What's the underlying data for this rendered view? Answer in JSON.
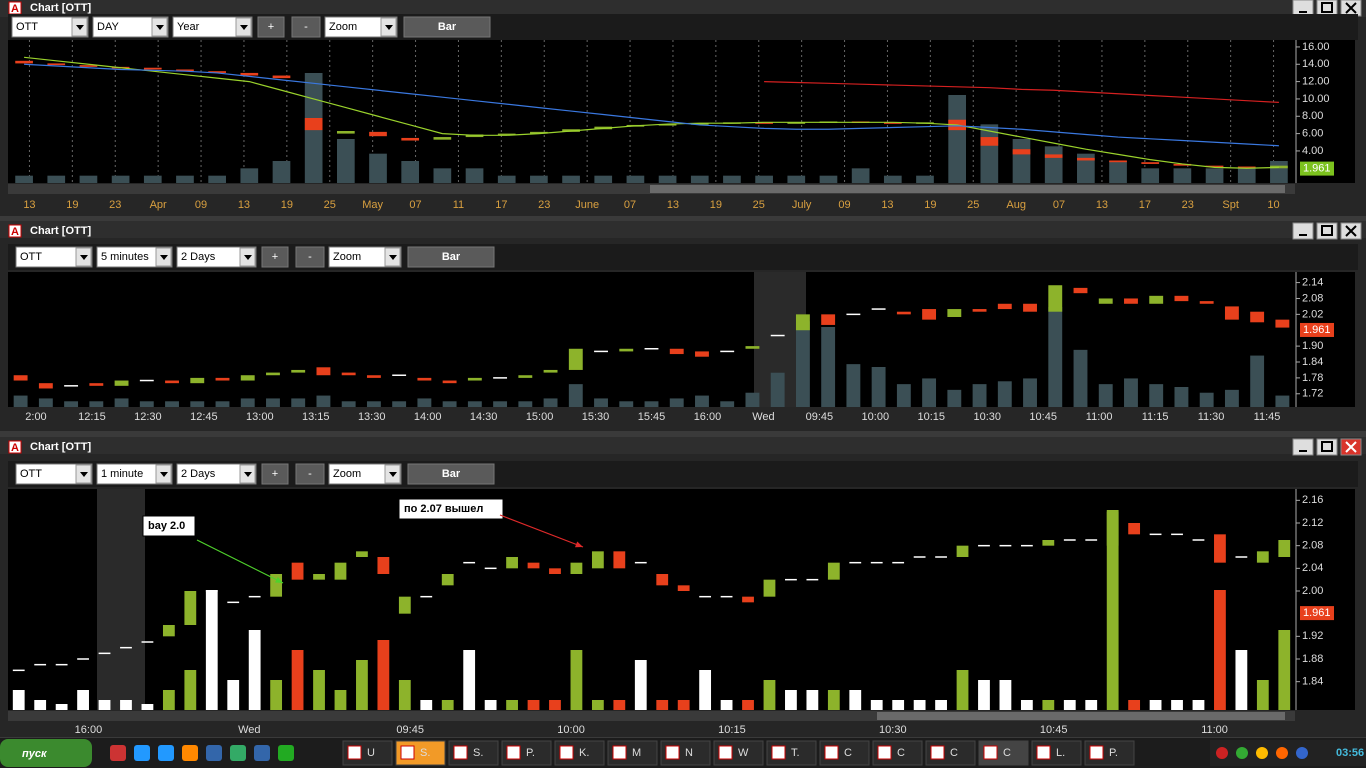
{
  "windows": [
    {
      "title": "Chart [OTT]",
      "symbol": "OTT",
      "interval": "DAY",
      "range": "Year",
      "plus": "+",
      "minus": "-",
      "zoom": "Zoom",
      "style": "Bar",
      "chart": {
        "type": "candlestick",
        "ylim": [
          0.3,
          16.8
        ],
        "yticks": [
          {
            "value": 16,
            "label": "16.00"
          },
          {
            "value": 14,
            "label": "14.00"
          },
          {
            "value": 12,
            "label": "12.00"
          },
          {
            "value": 10,
            "label": "10.00"
          },
          {
            "value": 8,
            "label": "8.00"
          },
          {
            "value": 6,
            "label": "6.00"
          },
          {
            "value": 4,
            "label": "4.00"
          }
        ],
        "xticks": [
          "13",
          "19",
          "23",
          "Apr",
          "09",
          "13",
          "19",
          "25",
          "May",
          "07",
          "11",
          "17",
          "23",
          "June",
          "07",
          "13",
          "19",
          "25",
          "July",
          "09",
          "13",
          "19",
          "25",
          "Aug",
          "07",
          "13",
          "17",
          "23",
          "Spt",
          "10"
        ],
        "grid": true,
        "last_price": 1.961,
        "last_color": "#7cc21e",
        "up_color": "#8db32b",
        "down_color": "#e8401c",
        "flat_color": "#ffffff",
        "volume_color": "#3b4f55",
        "candles": [
          [
            14.4,
            14.1
          ],
          [
            14.1,
            13.9
          ],
          [
            13.9,
            13.7
          ],
          [
            13.7,
            13.6
          ],
          [
            13.6,
            13.4
          ],
          [
            13.4,
            13.2
          ],
          [
            13.2,
            13.0
          ],
          [
            13.0,
            12.7
          ],
          [
            12.7,
            12.4
          ],
          [
            7.8,
            6.4
          ],
          [
            6.0,
            6.3
          ],
          [
            6.2,
            5.7
          ],
          [
            5.5,
            5.2
          ],
          [
            5.3,
            5.6
          ],
          [
            5.6,
            5.9
          ],
          [
            5.9,
            6.0
          ],
          [
            6.0,
            6.2
          ],
          [
            6.2,
            6.5
          ],
          [
            6.5,
            6.8
          ],
          [
            6.8,
            7.0
          ],
          [
            7.0,
            7.1
          ],
          [
            7.1,
            7.2
          ],
          [
            7.2,
            7.3
          ],
          [
            7.3,
            7.2
          ],
          [
            7.2,
            7.3
          ],
          [
            7.3,
            7.4
          ],
          [
            7.4,
            7.3
          ],
          [
            7.3,
            7.2
          ],
          [
            7.2,
            7.3
          ],
          [
            7.6,
            6.4
          ],
          [
            5.6,
            4.6
          ],
          [
            4.2,
            3.6
          ],
          [
            3.6,
            3.2
          ],
          [
            3.2,
            2.9
          ],
          [
            2.9,
            2.7
          ],
          [
            2.7,
            2.5
          ],
          [
            2.5,
            2.3
          ],
          [
            2.3,
            2.2
          ],
          [
            2.2,
            2.1
          ],
          [
            2.0,
            2.3
          ]
        ],
        "volume": [
          1,
          1,
          1,
          1,
          1,
          1,
          1,
          2,
          3,
          15,
          6,
          4,
          3,
          2,
          2,
          1,
          1,
          1,
          1,
          1,
          1,
          1,
          1,
          1,
          1,
          1,
          2,
          1,
          1,
          12,
          8,
          6,
          5,
          4,
          3,
          2,
          2,
          2,
          2,
          3
        ],
        "lines": [
          {
            "color": "#9ad22c",
            "values": [
              14.8,
              14.4,
              14.0,
              13.6,
              13.2,
              12.8,
              12.4,
              12.0,
              11.0,
              10.0,
              9.0,
              8.0,
              7.0,
              6.0,
              5.8,
              5.8,
              6.0,
              6.3,
              6.6,
              6.9,
              7.1,
              7.2,
              7.2,
              7.3,
              7.3,
              7.3,
              7.3,
              7.3,
              7.2,
              7.0,
              6.3,
              5.6,
              4.9,
              4.2,
              3.6,
              3.0,
              2.5,
              2.1,
              2.0,
              2.1
            ]
          },
          {
            "color": "#3a78e0",
            "values": [
              14.0,
              13.8,
              13.6,
              13.4,
              13.3,
              13.2,
              13.0,
              12.6,
              12.2,
              11.8,
              11.4,
              11.0,
              10.6,
              10.2,
              9.8,
              9.4,
              9.0,
              8.6,
              8.2,
              7.8,
              7.4,
              7.0,
              6.8,
              6.6,
              6.5,
              6.5,
              6.6,
              6.7,
              6.8,
              6.9,
              6.7,
              6.5,
              6.2,
              5.9,
              5.6,
              5.4,
              5.2,
              5.0,
              4.8,
              4.6
            ]
          },
          {
            "color": "#d42020",
            "values": [
              null,
              null,
              null,
              null,
              null,
              null,
              null,
              null,
              null,
              null,
              null,
              null,
              null,
              null,
              null,
              null,
              null,
              null,
              null,
              null,
              null,
              null,
              null,
              12.0,
              11.9,
              11.8,
              11.7,
              11.6,
              11.5,
              11.4,
              11.3,
              11.1,
              11.0,
              10.8,
              10.6,
              10.4,
              10.2,
              10.0,
              9.8,
              9.6
            ]
          }
        ]
      }
    },
    {
      "title": "Chart [OTT]",
      "symbol": "OTT",
      "interval": "5 minutes",
      "range": "2 Days",
      "plus": "+",
      "minus": "-",
      "zoom": "Zoom",
      "style": "Bar",
      "chart": {
        "type": "candlestick",
        "ylim": [
          1.67,
          2.18
        ],
        "yticks": [
          2.14,
          2.08,
          2.02,
          {
            "value": 1.9,
            "label": "1.90"
          },
          1.84,
          1.78,
          1.72
        ],
        "xticks": [
          "2:00",
          "12:15",
          "12:30",
          "12:45",
          "13:00",
          "13:15",
          "13:30",
          "14:00",
          "14:30",
          "15:00",
          "15:30",
          "15:45",
          "16:00",
          "Wed",
          "09:45",
          "10:00",
          "10:15",
          "10:30",
          "10:45",
          "11:00",
          "11:15",
          "11:30",
          "11:45"
        ],
        "grid": false,
        "last_price": 1.961,
        "last_color": "#e8401c",
        "up_color": "#8db32b",
        "down_color": "#e8401c",
        "flat_color": "#ffffff",
        "volume_color": "#3b4f55",
        "candles": [
          [
            1.79,
            1.77
          ],
          [
            1.76,
            1.74
          ],
          [
            1.75,
            1.75
          ],
          [
            1.76,
            1.75
          ],
          [
            1.75,
            1.77
          ],
          [
            1.77,
            1.77
          ],
          [
            1.77,
            1.76
          ],
          [
            1.76,
            1.78
          ],
          [
            1.78,
            1.77
          ],
          [
            1.77,
            1.79
          ],
          [
            1.79,
            1.8
          ],
          [
            1.8,
            1.81
          ],
          [
            1.82,
            1.79
          ],
          [
            1.8,
            1.79
          ],
          [
            1.79,
            1.78
          ],
          [
            1.79,
            1.79
          ],
          [
            1.78,
            1.77
          ],
          [
            1.77,
            1.76
          ],
          [
            1.77,
            1.78
          ],
          [
            1.78,
            1.78
          ],
          [
            1.78,
            1.79
          ],
          [
            1.8,
            1.81
          ],
          [
            1.81,
            1.89
          ],
          [
            1.88,
            1.88
          ],
          [
            1.88,
            1.89
          ],
          [
            1.89,
            1.89
          ],
          [
            1.89,
            1.87
          ],
          [
            1.88,
            1.86
          ],
          [
            1.88,
            1.88
          ],
          [
            1.89,
            1.9
          ],
          [
            1.94,
            1.94
          ],
          [
            1.96,
            2.02
          ],
          [
            2.02,
            1.98
          ],
          [
            2.02,
            2.02
          ],
          [
            2.04,
            2.04
          ],
          [
            2.03,
            2.02
          ],
          [
            2.04,
            2.0
          ],
          [
            2.01,
            2.04
          ],
          [
            2.04,
            2.03
          ],
          [
            2.06,
            2.04
          ],
          [
            2.06,
            2.03
          ],
          [
            2.03,
            2.13
          ],
          [
            2.12,
            2.1
          ],
          [
            2.06,
            2.08
          ],
          [
            2.08,
            2.06
          ],
          [
            2.06,
            2.09
          ],
          [
            2.09,
            2.07
          ],
          [
            2.07,
            2.06
          ],
          [
            2.05,
            2.0
          ],
          [
            2.03,
            1.99
          ],
          [
            2.0,
            1.97
          ]
        ],
        "volume": [
          4,
          3,
          2,
          2,
          3,
          2,
          2,
          2,
          2,
          3,
          3,
          3,
          4,
          2,
          2,
          2,
          3,
          2,
          2,
          2,
          2,
          3,
          8,
          3,
          2,
          2,
          3,
          4,
          2,
          5,
          12,
          30,
          28,
          15,
          14,
          8,
          10,
          6,
          8,
          9,
          10,
          35,
          20,
          8,
          10,
          8,
          7,
          5,
          6,
          18,
          4
        ]
      },
      "annotations": []
    },
    {
      "title": "Chart [OTT]",
      "symbol": "OTT",
      "interval": "1 minute",
      "range": "2 Days",
      "plus": "+",
      "minus": "-",
      "zoom": "Zoom",
      "style": "Bar",
      "chart": {
        "type": "candlestick",
        "ylim": [
          1.79,
          2.18
        ],
        "yticks": [
          2.16,
          2.12,
          2.08,
          2.04,
          {
            "value": 2.0,
            "label": "2.00"
          },
          1.92,
          1.88,
          1.84
        ],
        "xticks": [
          "16:00",
          "Wed",
          "09:45",
          "10:00",
          "10:15",
          "10:30",
          "10:45",
          "11:00"
        ],
        "grid": false,
        "last_price": 1.961,
        "last_color": "#e8401c",
        "up_color": "#8db32b",
        "down_color": "#e8401c",
        "flat_color": "#ffffff",
        "candles": [
          [
            1.86,
            1.86
          ],
          [
            1.87,
            1.87
          ],
          [
            1.87,
            1.87
          ],
          [
            1.88,
            1.88
          ],
          [
            1.89,
            1.89
          ],
          [
            1.9,
            1.9
          ],
          [
            1.91,
            1.91
          ],
          [
            1.92,
            1.94
          ],
          [
            1.94,
            2.0
          ],
          [
            2.0,
            2.0
          ],
          [
            1.98,
            1.98
          ],
          [
            1.99,
            1.99
          ],
          [
            1.99,
            2.03
          ],
          [
            2.05,
            2.02
          ],
          [
            2.02,
            2.03
          ],
          [
            2.02,
            2.05
          ],
          [
            2.06,
            2.07
          ],
          [
            2.06,
            2.03
          ],
          [
            1.96,
            1.99
          ],
          [
            1.99,
            1.99
          ],
          [
            2.01,
            2.03
          ],
          [
            2.05,
            2.05
          ],
          [
            2.04,
            2.04
          ],
          [
            2.04,
            2.06
          ],
          [
            2.05,
            2.04
          ],
          [
            2.04,
            2.03
          ],
          [
            2.03,
            2.05
          ],
          [
            2.04,
            2.07
          ],
          [
            2.07,
            2.04
          ],
          [
            2.05,
            2.05
          ],
          [
            2.03,
            2.01
          ],
          [
            2.01,
            2.0
          ],
          [
            1.99,
            1.99
          ],
          [
            1.99,
            1.99
          ],
          [
            1.99,
            1.98
          ],
          [
            1.99,
            2.02
          ],
          [
            2.02,
            2.02
          ],
          [
            2.02,
            2.02
          ],
          [
            2.02,
            2.05
          ],
          [
            2.05,
            2.05
          ],
          [
            2.05,
            2.05
          ],
          [
            2.05,
            2.05
          ],
          [
            2.06,
            2.06
          ],
          [
            2.06,
            2.06
          ],
          [
            2.06,
            2.08
          ],
          [
            2.08,
            2.08
          ],
          [
            2.08,
            2.08
          ],
          [
            2.08,
            2.08
          ],
          [
            2.08,
            2.09
          ],
          [
            2.09,
            2.09
          ],
          [
            2.09,
            2.09
          ],
          [
            2.08,
            2.14
          ],
          [
            2.12,
            2.1
          ],
          [
            2.1,
            2.1
          ],
          [
            2.1,
            2.1
          ],
          [
            2.09,
            2.09
          ],
          [
            2.1,
            2.05
          ],
          [
            2.06,
            2.06
          ],
          [
            2.05,
            2.07
          ],
          [
            2.06,
            2.09
          ]
        ],
        "volume": [
          10,
          5,
          3,
          10,
          5,
          5,
          3,
          10,
          20,
          60,
          15,
          40,
          15,
          30,
          20,
          10,
          25,
          35,
          15,
          5,
          5,
          30,
          5,
          5,
          5,
          5,
          30,
          5,
          5,
          25,
          5,
          5,
          20,
          5,
          5,
          15,
          10,
          10,
          10,
          10,
          5,
          5,
          5,
          5,
          20,
          15,
          15,
          5,
          5,
          5,
          5,
          100,
          5,
          5,
          5,
          5,
          60,
          30,
          15,
          40
        ]
      },
      "annotations": [
        "bay 2.0",
        "по 2.07 вышел"
      ]
    }
  ],
  "taskbar": {
    "start": "пуск",
    "items": [
      "U",
      "S.",
      "S.",
      "P.",
      "K.",
      "M",
      "N",
      "W",
      "T.",
      "C",
      "C",
      "C",
      "C",
      "L.",
      "P."
    ],
    "clock": "03:56"
  }
}
